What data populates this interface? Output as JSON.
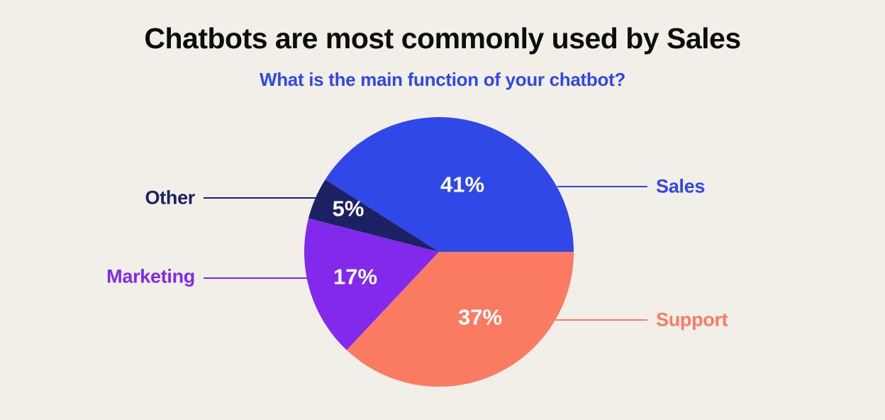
{
  "page": {
    "background_color": "#f2efe9"
  },
  "chart_data": {
    "type": "pie",
    "title": "Chatbots are most commonly used by Sales",
    "subtitle": "What is the main function of your chatbot?",
    "unit": "%",
    "slices": [
      {
        "label": "Sales",
        "value": 41,
        "display": "41%",
        "color": "#3148e9"
      },
      {
        "label": "Other",
        "value": 5,
        "display": "5%",
        "color": "#1b2163"
      },
      {
        "label": "Marketing",
        "value": 17,
        "display": "17%",
        "color": "#8229ec"
      },
      {
        "label": "Support",
        "value": 37,
        "display": "37%",
        "color": "#fa7a62"
      }
    ],
    "layout": {
      "start_angle_deg": 0,
      "direction": "counterclockwise",
      "legend": "callout-labels",
      "value_labels": "inside-white"
    }
  }
}
